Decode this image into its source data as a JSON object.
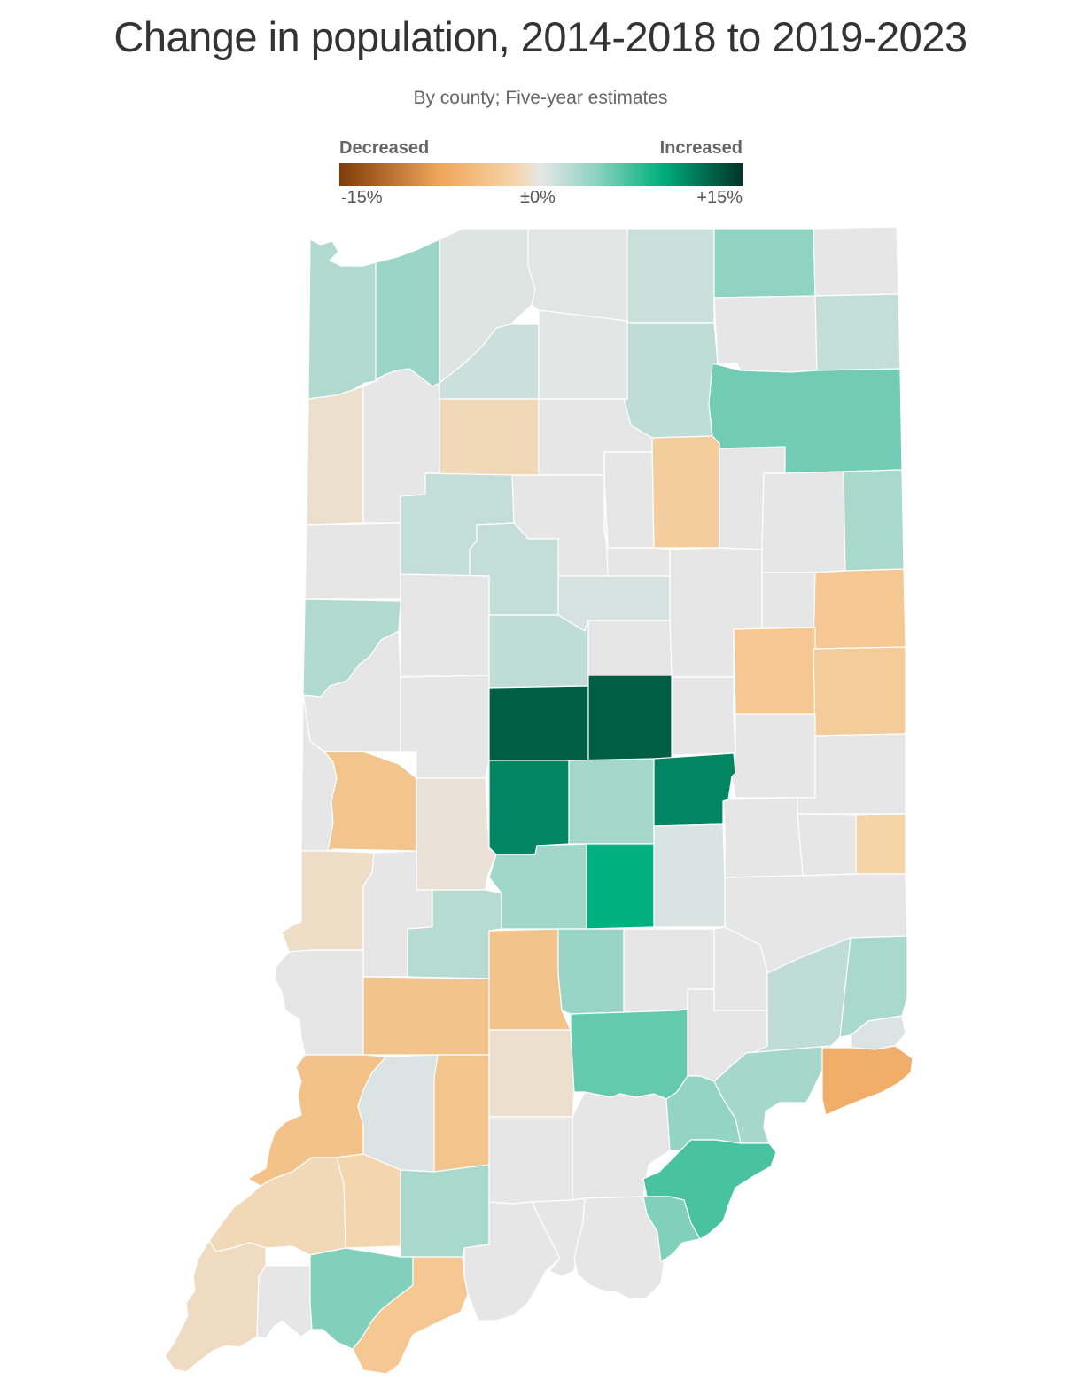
{
  "title": "Change in population, 2014-2018 to 2019-2023",
  "subtitle": "By county; Five-year estimates",
  "legend": {
    "low_label": "Decreased",
    "high_label": "Increased",
    "ticks": [
      "-15%",
      "±0%",
      "+15%"
    ],
    "min": -15,
    "max": 15,
    "stops": [
      {
        "value": -15,
        "color": "#7f3b08"
      },
      {
        "value": -7.5,
        "color": "#f0a65a"
      },
      {
        "value": -2,
        "color": "#f5d4a8"
      },
      {
        "value": 0,
        "color": "#e6e6e6"
      },
      {
        "value": 4,
        "color": "#8fd3c2"
      },
      {
        "value": 9,
        "color": "#00b07f"
      },
      {
        "value": 15,
        "color": "#00332a"
      }
    ]
  },
  "map": {
    "state": "Indiana",
    "unit": "county",
    "counties": [
      {
        "id": "lake",
        "change": 2.5
      },
      {
        "id": "porter",
        "change": 3.5
      },
      {
        "id": "laporte",
        "change": 0.4
      },
      {
        "id": "st-joseph",
        "change": 0.2
      },
      {
        "id": "elkhart",
        "change": 1.2
      },
      {
        "id": "lagrange",
        "change": 4.0
      },
      {
        "id": "steuben",
        "change": 0.0
      },
      {
        "id": "starke",
        "change": 1.2
      },
      {
        "id": "marshall",
        "change": 0.1
      },
      {
        "id": "kosciusko",
        "change": 1.8
      },
      {
        "id": "noble",
        "change": 0.0
      },
      {
        "id": "dekalb",
        "change": 1.6
      },
      {
        "id": "newton",
        "change": -0.8
      },
      {
        "id": "jasper",
        "change": 0.0
      },
      {
        "id": "pulaski",
        "change": -1.5
      },
      {
        "id": "fulton",
        "change": 0.0
      },
      {
        "id": "wabash",
        "change": 0.0
      },
      {
        "id": "whitley",
        "change": -2.8
      },
      {
        "id": "huntington",
        "change": 0.0
      },
      {
        "id": "allen",
        "change": 5.0
      },
      {
        "id": "white",
        "change": 1.6
      },
      {
        "id": "cass",
        "change": 0.0
      },
      {
        "id": "miami",
        "change": 0.0
      },
      {
        "id": "wells",
        "change": 0.0
      },
      {
        "id": "adams",
        "change": 2.8
      },
      {
        "id": "benton",
        "change": 0.0
      },
      {
        "id": "carroll",
        "change": 1.6
      },
      {
        "id": "howard",
        "change": 0.8
      },
      {
        "id": "grant",
        "change": 0.0
      },
      {
        "id": "blackford",
        "change": 0.0
      },
      {
        "id": "jay",
        "change": -3.5
      },
      {
        "id": "warren",
        "change": 2.5
      },
      {
        "id": "tippecanoe",
        "change": 0.0
      },
      {
        "id": "clinton",
        "change": 1.8
      },
      {
        "id": "tipton",
        "change": 0.0
      },
      {
        "id": "madison",
        "change": 0.0
      },
      {
        "id": "delaware",
        "change": -3.5
      },
      {
        "id": "randolph",
        "change": -3.0
      },
      {
        "id": "fountain",
        "change": 0.0
      },
      {
        "id": "montgomery",
        "change": 0.0
      },
      {
        "id": "boone",
        "change": 13.0
      },
      {
        "id": "hamilton",
        "change": 13.0
      },
      {
        "id": "hancock",
        "change": 11.0
      },
      {
        "id": "henry",
        "change": 0.0
      },
      {
        "id": "wayne",
        "change": 0.0
      },
      {
        "id": "vermillion",
        "change": 0.0
      },
      {
        "id": "parke",
        "change": -3.8
      },
      {
        "id": "putnam",
        "change": -0.5
      },
      {
        "id": "hendricks",
        "change": 11.0
      },
      {
        "id": "marion",
        "change": 3.0
      },
      {
        "id": "shelby",
        "change": 0.6
      },
      {
        "id": "rush",
        "change": 0.0
      },
      {
        "id": "fayette",
        "change": -2.0
      },
      {
        "id": "union",
        "change": 0.0
      },
      {
        "id": "vigo",
        "change": -1.0
      },
      {
        "id": "clay",
        "change": 0.0
      },
      {
        "id": "owen",
        "change": 2.2
      },
      {
        "id": "morgan",
        "change": 3.2
      },
      {
        "id": "johnson",
        "change": 9.0
      },
      {
        "id": "franklin",
        "change": 0.0
      },
      {
        "id": "sullivan",
        "change": 0.0
      },
      {
        "id": "greene",
        "change": -4.0
      },
      {
        "id": "monroe",
        "change": -4.0
      },
      {
        "id": "brown",
        "change": 3.6
      },
      {
        "id": "bartholomew",
        "change": 0.0
      },
      {
        "id": "decatur",
        "change": 0.0
      },
      {
        "id": "ripley",
        "change": 1.8
      },
      {
        "id": "dearborn",
        "change": 2.8
      },
      {
        "id": "ohio",
        "change": 0.5
      },
      {
        "id": "knox",
        "change": -4.2
      },
      {
        "id": "daviess",
        "change": 0.5
      },
      {
        "id": "martin",
        "change": -3.8
      },
      {
        "id": "lawrence",
        "change": -0.8
      },
      {
        "id": "jackson",
        "change": 5.5
      },
      {
        "id": "jennings",
        "change": 0.0
      },
      {
        "id": "jefferson",
        "change": 3.0
      },
      {
        "id": "switzerland",
        "change": -6.5
      },
      {
        "id": "gibson",
        "change": -1.5
      },
      {
        "id": "pike",
        "change": -1.8
      },
      {
        "id": "dubois",
        "change": 2.8
      },
      {
        "id": "orange",
        "change": 0.0
      },
      {
        "id": "washington",
        "change": 0.0
      },
      {
        "id": "scott",
        "change": 3.8
      },
      {
        "id": "clark",
        "change": 6.5
      },
      {
        "id": "posey",
        "change": -1.2
      },
      {
        "id": "vanderburgh",
        "change": 0.0
      },
      {
        "id": "warrick",
        "change": 4.5
      },
      {
        "id": "spencer",
        "change": -3.5
      },
      {
        "id": "perry",
        "change": 0.0
      },
      {
        "id": "crawford",
        "change": 0.0
      },
      {
        "id": "harrison",
        "change": 0.0
      },
      {
        "id": "floyd",
        "change": 4.5
      }
    ]
  }
}
